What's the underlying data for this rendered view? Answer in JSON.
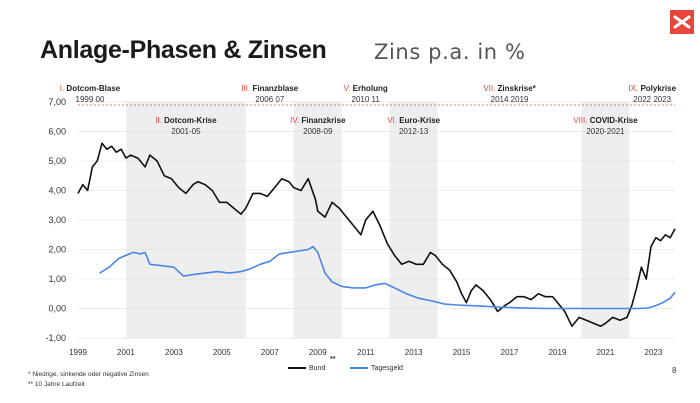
{
  "header": {
    "title": "Anlage-Phasen & Zinsen",
    "subtitle": "Zins p.a. in %"
  },
  "logo": {
    "icon": "x-logo-icon",
    "color": "#e8453c"
  },
  "colors": {
    "bund": "#111111",
    "tagesgeld": "#4a86e8",
    "band": "#eeeeee",
    "phase_label": "#e8453c"
  },
  "chart_data": {
    "type": "line",
    "title": "Anlage-Phasen & Zinsen",
    "subtitle": "Zins p.a. in %",
    "xlim": [
      1999.0,
      2023.9
    ],
    "ylim": [
      -1.0,
      7.0
    ],
    "yticks": [
      "7,00",
      "6,00",
      "5,00",
      "4,00",
      "3,00",
      "2,00",
      "1,00",
      "0,00",
      "-1,00"
    ],
    "ytick_values": [
      7,
      6,
      5,
      4,
      3,
      2,
      1,
      0,
      -1
    ],
    "xticks": [
      "1999",
      "2001",
      "2003",
      "2005",
      "2007",
      "2009",
      "2011",
      "2013",
      "2015",
      "2017",
      "2019",
      "2021",
      "2023"
    ],
    "xtick_values": [
      1999,
      2001,
      2003,
      2005,
      2007,
      2009,
      2011,
      2013,
      2015,
      2017,
      2019,
      2021,
      2023
    ],
    "grid": true,
    "series": [
      {
        "name": "Bund",
        "color": "#111111",
        "x": [
          1999.0,
          1999.2,
          1999.4,
          1999.6,
          1999.8,
          1999.9,
          2000.0,
          2000.2,
          2000.4,
          2000.6,
          2000.8,
          2001.0,
          2001.2,
          2001.5,
          2001.8,
          2002.0,
          2002.3,
          2002.6,
          2002.9,
          2003.2,
          2003.5,
          2003.8,
          2004.0,
          2004.3,
          2004.6,
          2004.9,
          2005.2,
          2005.5,
          2005.8,
          2006.0,
          2006.3,
          2006.6,
          2006.9,
          2007.2,
          2007.5,
          2007.8,
          2008.0,
          2008.3,
          2008.6,
          2008.9,
          2009.0,
          2009.3,
          2009.6,
          2009.9,
          2010.2,
          2010.5,
          2010.8,
          2011.0,
          2011.3,
          2011.6,
          2011.9,
          2012.2,
          2012.5,
          2012.8,
          2013.1,
          2013.4,
          2013.7,
          2013.9,
          2014.2,
          2014.5,
          2014.8,
          2015.0,
          2015.2,
          2015.4,
          2015.6,
          2015.9,
          2016.2,
          2016.5,
          2016.8,
          2017.0,
          2017.3,
          2017.6,
          2017.9,
          2018.2,
          2018.5,
          2018.8,
          2019.0,
          2019.3,
          2019.6,
          2019.9,
          2020.2,
          2020.5,
          2020.8,
          2021.0,
          2021.3,
          2021.6,
          2021.9,
          2022.1,
          2022.3,
          2022.5,
          2022.7,
          2022.9,
          2023.1,
          2023.3,
          2023.5,
          2023.7,
          2023.9
        ],
        "y": [
          3.9,
          4.2,
          4.0,
          4.8,
          5.0,
          5.3,
          5.6,
          5.4,
          5.5,
          5.3,
          5.4,
          5.1,
          5.2,
          5.1,
          4.8,
          5.2,
          5.0,
          4.5,
          4.4,
          4.1,
          3.9,
          4.2,
          4.3,
          4.2,
          4.0,
          3.6,
          3.6,
          3.4,
          3.2,
          3.4,
          3.9,
          3.9,
          3.8,
          4.1,
          4.4,
          4.3,
          4.1,
          4.0,
          4.4,
          3.7,
          3.3,
          3.1,
          3.6,
          3.4,
          3.1,
          2.8,
          2.5,
          3.0,
          3.3,
          2.8,
          2.2,
          1.8,
          1.5,
          1.6,
          1.5,
          1.5,
          1.9,
          1.8,
          1.5,
          1.3,
          0.9,
          0.5,
          0.2,
          0.6,
          0.8,
          0.6,
          0.3,
          -0.1,
          0.1,
          0.2,
          0.4,
          0.4,
          0.3,
          0.5,
          0.4,
          0.4,
          0.2,
          -0.1,
          -0.6,
          -0.3,
          -0.4,
          -0.5,
          -0.6,
          -0.5,
          -0.3,
          -0.4,
          -0.3,
          0.1,
          0.7,
          1.4,
          1.0,
          2.1,
          2.4,
          2.3,
          2.5,
          2.4,
          2.7
        ]
      },
      {
        "name": "Tagesgeld",
        "color": "#4a86e8",
        "x": [
          1999.9,
          2000.3,
          2000.7,
          2001.0,
          2001.3,
          2001.6,
          2001.8,
          2002.0,
          2002.5,
          2003.0,
          2003.4,
          2003.8,
          2004.3,
          2004.8,
          2005.3,
          2005.8,
          2006.2,
          2006.6,
          2007.0,
          2007.4,
          2007.8,
          2008.2,
          2008.6,
          2008.8,
          2009.0,
          2009.3,
          2009.6,
          2010.0,
          2010.5,
          2011.0,
          2011.4,
          2011.8,
          2012.2,
          2012.7,
          2013.2,
          2013.8,
          2014.3,
          2014.8,
          2015.3,
          2015.8,
          2016.5,
          2017.5,
          2018.5,
          2019.5,
          2020.5,
          2021.5,
          2022.0,
          2022.4,
          2022.8,
          2023.1,
          2023.4,
          2023.7,
          2023.9
        ],
        "y": [
          1.2,
          1.4,
          1.7,
          1.8,
          1.9,
          1.85,
          1.9,
          1.5,
          1.45,
          1.4,
          1.1,
          1.15,
          1.2,
          1.25,
          1.2,
          1.25,
          1.35,
          1.5,
          1.6,
          1.85,
          1.9,
          1.95,
          2.0,
          2.1,
          1.9,
          1.2,
          0.9,
          0.75,
          0.7,
          0.7,
          0.8,
          0.85,
          0.7,
          0.5,
          0.35,
          0.25,
          0.15,
          0.12,
          0.1,
          0.08,
          0.05,
          0.02,
          0.0,
          0.0,
          0.0,
          0.0,
          0.0,
          0.0,
          0.02,
          0.1,
          0.2,
          0.35,
          0.55
        ]
      }
    ],
    "phases": [
      {
        "roman": "I.",
        "name": "Dotcom-Blase",
        "years": "1999 00",
        "row": 1,
        "start": 1999.0,
        "end": 2000.0,
        "shaded": false
      },
      {
        "roman": "II.",
        "name": "Dotcom-Krise",
        "years": "2001-05",
        "row": 2,
        "start": 2001.0,
        "end": 2006.0,
        "shaded": true
      },
      {
        "roman": "III.",
        "name": "Finanzblase",
        "years": "2006 07",
        "row": 1,
        "start": 2006.0,
        "end": 2008.0,
        "shaded": false
      },
      {
        "roman": "IV.",
        "name": "Finanzkrise",
        "years": "2008-09",
        "row": 2,
        "start": 2008.0,
        "end": 2010.0,
        "shaded": true
      },
      {
        "roman": "V.",
        "name": "Erholung",
        "years": "2010 11",
        "row": 1,
        "start": 2010.0,
        "end": 2012.0,
        "shaded": false
      },
      {
        "roman": "VI.",
        "name": "Euro-Krise",
        "years": "2012-13",
        "row": 2,
        "start": 2012.0,
        "end": 2014.0,
        "shaded": true
      },
      {
        "roman": "VII.",
        "name": "Zinskrise*",
        "years": "2014 2019",
        "row": 1,
        "start": 2014.0,
        "end": 2020.0,
        "shaded": false
      },
      {
        "roman": "VIII.",
        "name": "COVID-Krise",
        "years": "2020-2021",
        "row": 2,
        "start": 2020.0,
        "end": 2022.0,
        "shaded": true
      },
      {
        "roman": "IX.",
        "name": "Polykrise",
        "years": "2022 2023",
        "row": 1,
        "start": 2022.0,
        "end": 2023.9,
        "shaded": false
      }
    ],
    "legend": [
      {
        "label": "Bund",
        "color": "#111111"
      },
      {
        "label": "Tagesgeld",
        "color": "#4a86e8"
      }
    ],
    "legend_placement": "bottom"
  },
  "legend_marker": "**",
  "footnotes": [
    "* Niedrige, sinkende oder negative Zinsen",
    "** 10 Jahre Laufzeit"
  ],
  "page_number": "8"
}
